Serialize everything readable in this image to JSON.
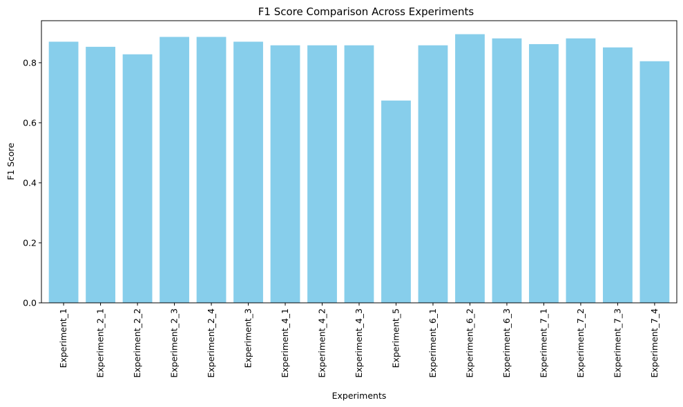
{
  "chart_data": {
    "type": "bar",
    "title": "F1 Score Comparison Across Experiments",
    "xlabel": "Experiments",
    "ylabel": "F1 Score",
    "categories": [
      "Experiment_1",
      "Experiment_2_1",
      "Experiment_2_2",
      "Experiment_2_3",
      "Experiment_2_4",
      "Experiment_3",
      "Experiment_4_1",
      "Experiment_4_2",
      "Experiment_4_3",
      "Experiment_5",
      "Experiment_6_1",
      "Experiment_6_2",
      "Experiment_6_3",
      "Experiment_7_1",
      "Experiment_7_2",
      "Experiment_7_3",
      "Experiment_7_4"
    ],
    "values": [
      0.87,
      0.853,
      0.828,
      0.886,
      0.886,
      0.87,
      0.858,
      0.858,
      0.858,
      0.674,
      0.858,
      0.895,
      0.881,
      0.862,
      0.881,
      0.851,
      0.805
    ],
    "ylim": [
      0,
      0.94
    ],
    "yticks": [
      0.0,
      0.2,
      0.4,
      0.6,
      0.8
    ],
    "ytick_labels": [
      "0.0",
      "0.2",
      "0.4",
      "0.6",
      "0.8"
    ],
    "bar_color": "#87ceeb",
    "grid": false,
    "legend": "none"
  }
}
